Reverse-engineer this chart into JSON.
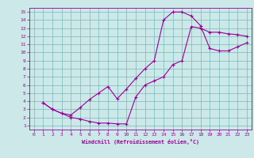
{
  "xlabel": "Windchill (Refroidissement éolien,°C)",
  "ylabel": "",
  "background_color": "#cce8e8",
  "grid_color": "#7ab8b8",
  "line_color": "#990099",
  "xlim": [
    -0.5,
    23.5
  ],
  "ylim": [
    0.5,
    15.5
  ],
  "xticks": [
    0,
    1,
    2,
    3,
    4,
    5,
    6,
    7,
    8,
    9,
    10,
    11,
    12,
    13,
    14,
    15,
    16,
    17,
    18,
    19,
    20,
    21,
    22,
    23
  ],
  "yticks": [
    1,
    2,
    3,
    4,
    5,
    6,
    7,
    8,
    9,
    10,
    11,
    12,
    13,
    14,
    15
  ],
  "curve1_x": [
    1,
    2,
    3,
    4,
    5,
    6,
    7,
    8,
    9,
    10,
    11,
    12,
    13,
    14,
    15,
    16,
    17,
    18,
    19,
    20,
    21,
    22,
    23
  ],
  "curve1_y": [
    3.8,
    3.0,
    2.5,
    2.0,
    1.8,
    1.5,
    1.3,
    1.3,
    1.2,
    1.2,
    4.5,
    6.0,
    6.5,
    7.0,
    8.5,
    9.0,
    13.2,
    13.0,
    12.5,
    12.5,
    12.3,
    12.2,
    12.0
  ],
  "curve2_x": [
    1,
    2,
    3,
    4,
    5,
    6,
    7,
    8,
    9,
    10,
    11,
    12,
    13,
    14,
    15,
    16,
    17,
    18,
    19,
    20,
    21,
    22,
    23
  ],
  "curve2_y": [
    3.8,
    3.0,
    2.5,
    2.3,
    3.2,
    4.2,
    5.0,
    5.8,
    4.3,
    5.5,
    6.8,
    8.0,
    9.0,
    14.0,
    15.0,
    15.0,
    14.5,
    13.3,
    10.5,
    10.2,
    10.2,
    10.7,
    11.2
  ]
}
